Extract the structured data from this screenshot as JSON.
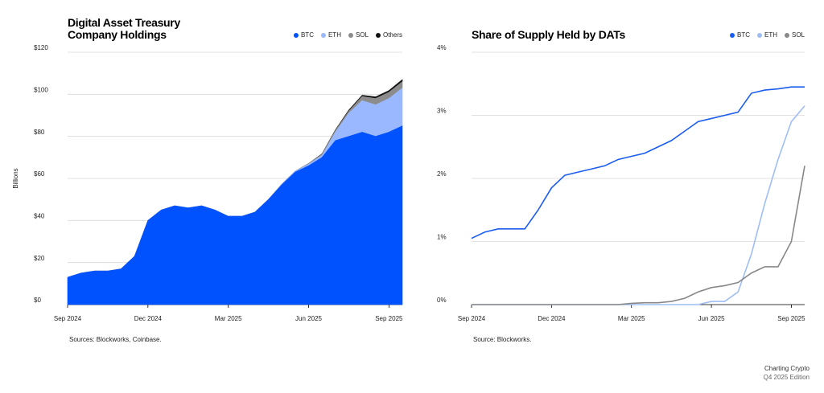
{
  "chart_data": [
    {
      "type": "area",
      "stacked": true,
      "title": "Digital Asset Treasury Company Holdings",
      "y_label": "Billions",
      "source": "Sources: Blockworks, Coinbase.",
      "categories": [
        "Sep 2024",
        null,
        null,
        null,
        null,
        null,
        "Dec 2024",
        null,
        null,
        null,
        null,
        null,
        "Mar 2025",
        null,
        null,
        null,
        null,
        null,
        "Jun 2025",
        null,
        null,
        null,
        null,
        null,
        "Sep 2025",
        null
      ],
      "series": [
        {
          "name": "BTC",
          "color": "#0052ff",
          "values": [
            13,
            15,
            16,
            16,
            17,
            23,
            40,
            45,
            47,
            46,
            47,
            45,
            42,
            42,
            44,
            50,
            57,
            63,
            66,
            70,
            78,
            80,
            82,
            80,
            82,
            85
          ]
        },
        {
          "name": "ETH",
          "color": "#9ab8ff",
          "values": [
            0,
            0,
            0,
            0,
            0,
            0,
            0,
            0,
            0,
            0,
            0,
            0,
            0,
            0,
            0,
            0,
            0.3,
            0.5,
            0.8,
            1,
            4,
            11,
            15,
            15,
            16,
            18
          ]
        },
        {
          "name": "SOL",
          "color": "#8c8c8c",
          "values": [
            0,
            0,
            0,
            0,
            0,
            0,
            0,
            0,
            0,
            0,
            0,
            0,
            0,
            0,
            0,
            0,
            0,
            0,
            0.3,
            0.5,
            0.8,
            1,
            2,
            3,
            3,
            3
          ]
        },
        {
          "name": "Others",
          "color": "#111111",
          "values": [
            0,
            0,
            0,
            0,
            0,
            0,
            0,
            0,
            0,
            0,
            0,
            0,
            0,
            0,
            0,
            0,
            0,
            0,
            0,
            0.2,
            0.3,
            0.5,
            0.6,
            0.8,
            0.8,
            1
          ]
        }
      ],
      "ylim": [
        0,
        120
      ],
      "yticks": [
        {
          "value": 0,
          "label": "$0"
        },
        {
          "value": 20,
          "label": "$20"
        },
        {
          "value": 40,
          "label": "$40"
        },
        {
          "value": 60,
          "label": "$60"
        },
        {
          "value": 80,
          "label": "$80"
        },
        {
          "value": 100,
          "label": "$100"
        },
        {
          "value": 120,
          "label": "$120"
        }
      ],
      "grid": true
    },
    {
      "type": "line",
      "title": "Share of Supply Held by DATs",
      "source": "Source: Blockworks.",
      "categories": [
        "Sep 2024",
        null,
        null,
        null,
        null,
        null,
        "Dec 2024",
        null,
        null,
        null,
        null,
        null,
        "Mar 2025",
        null,
        null,
        null,
        null,
        null,
        "Jun 2025",
        null,
        null,
        null,
        null,
        null,
        "Sep 2025",
        null
      ],
      "series": [
        {
          "name": "BTC",
          "color": "#1a5cf0",
          "values": [
            1.05,
            1.15,
            1.2,
            1.2,
            1.2,
            1.5,
            1.85,
            2.05,
            2.1,
            2.15,
            2.2,
            2.3,
            2.35,
            2.4,
            2.5,
            2.6,
            2.75,
            2.9,
            2.95,
            3.0,
            3.05,
            3.35,
            3.4,
            3.42,
            3.45,
            3.45
          ]
        },
        {
          "name": "ETH",
          "color": "#9fbdf5",
          "values": [
            0,
            0,
            0,
            0,
            0,
            0,
            0,
            0,
            0,
            0,
            0,
            0,
            0,
            0,
            0,
            0,
            0,
            0,
            0.05,
            0.05,
            0.2,
            0.8,
            1.6,
            2.3,
            2.9,
            3.15
          ]
        },
        {
          "name": "SOL",
          "color": "#888888",
          "values": [
            0,
            0,
            0,
            0,
            0,
            0,
            0,
            0,
            0,
            0,
            0,
            0,
            0.02,
            0.03,
            0.03,
            0.05,
            0.1,
            0.2,
            0.27,
            0.3,
            0.35,
            0.5,
            0.6,
            0.6,
            1.0,
            2.2
          ]
        }
      ],
      "ylim": [
        0,
        4
      ],
      "yticks": [
        {
          "value": 0,
          "label": "0%"
        },
        {
          "value": 1,
          "label": "1%"
        },
        {
          "value": 2,
          "label": "2%"
        },
        {
          "value": 3,
          "label": "3%"
        },
        {
          "value": 4,
          "label": "4%"
        }
      ],
      "grid": true
    }
  ],
  "footer": {
    "brand": "Charting Crypto",
    "edition": "Q4 2025 Edition"
  }
}
